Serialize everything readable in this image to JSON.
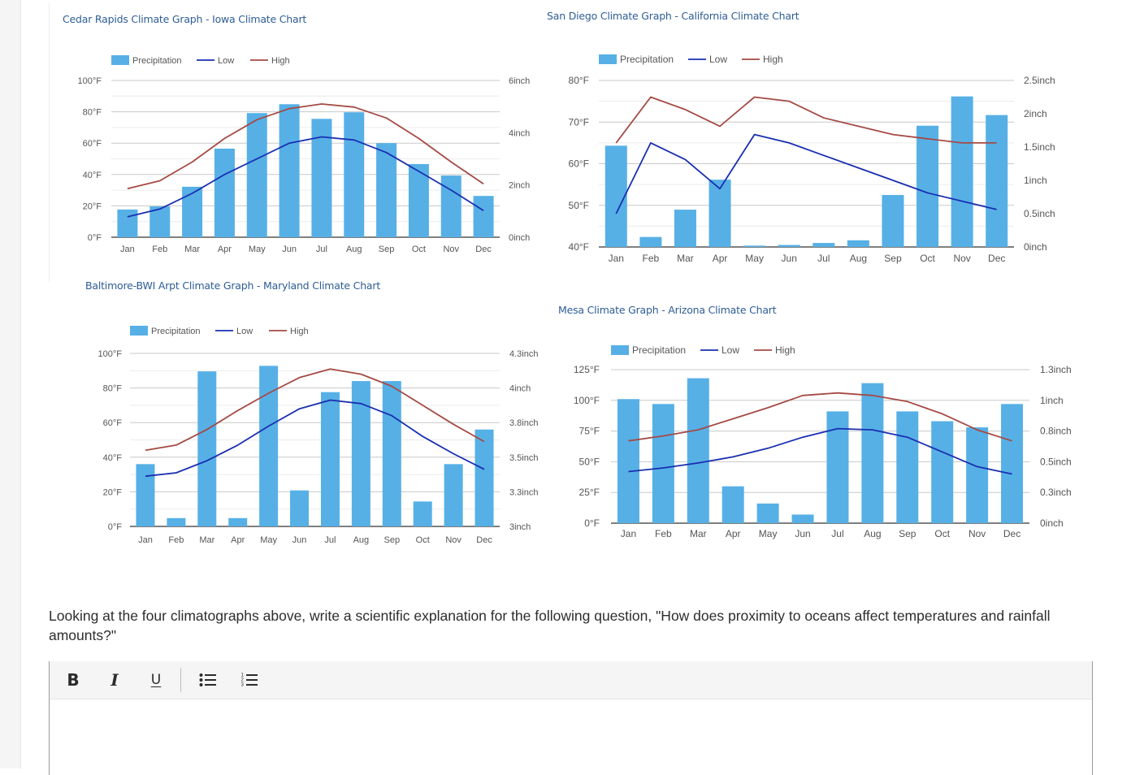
{
  "page": {
    "question": "Looking at the four climatographs above, write a scientific explanation for the following question, \"How does proximity to oceans affect temperatures and rainfall amounts?\""
  },
  "editor": {
    "toolbar": [
      {
        "name": "bold-button",
        "label": "B",
        "icon": "bold-icon"
      },
      {
        "name": "italic-button",
        "label": "I",
        "icon": "italic-icon"
      },
      {
        "name": "underline-button",
        "label": "U",
        "icon": "underline-icon"
      },
      {
        "name": "bullet-list-button",
        "label": "",
        "icon": "bullet-list-icon"
      },
      {
        "name": "numbered-list-button",
        "label": "",
        "icon": "numbered-list-icon"
      }
    ],
    "content": ""
  },
  "colors": {
    "precip": "#56b0e6",
    "low": "#1a2fb0",
    "high": "#a54a45",
    "title": "#2d5d95"
  },
  "chart_data": [
    {
      "id": "cedar",
      "type": "bar+line",
      "title": "Cedar Rapids Climate Graph - Iowa Climate Chart",
      "legend": [
        "Precipitation",
        "Low",
        "High"
      ],
      "legend_position": "top-left",
      "categories": [
        "Jan",
        "Feb",
        "Mar",
        "Apr",
        "May",
        "Jun",
        "Jul",
        "Aug",
        "Sep",
        "Oct",
        "Nov",
        "Dec"
      ],
      "y_left": {
        "range": [
          0,
          100
        ],
        "ticks": [
          "0°F",
          "20°F",
          "40°F",
          "60°F",
          "80°F",
          "100°F"
        ]
      },
      "y_right": {
        "range": [
          0,
          6
        ],
        "ticks": [
          "0inch",
          "2inch",
          "4inch",
          "6inch"
        ]
      },
      "grid": true,
      "series": [
        {
          "name": "Precipitation",
          "type": "bar",
          "axis": "right",
          "values": [
            1.06,
            1.18,
            1.93,
            3.39,
            4.75,
            5.09,
            4.53,
            4.78,
            3.6,
            2.8,
            2.36,
            1.58
          ]
        },
        {
          "name": "Low",
          "type": "line",
          "axis": "left",
          "values": [
            13,
            18,
            28,
            40,
            50,
            60,
            64,
            62,
            54,
            42,
            30,
            17
          ]
        },
        {
          "name": "High",
          "type": "line",
          "axis": "left",
          "values": [
            31,
            36,
            48,
            63,
            75,
            82,
            85,
            83,
            76,
            63,
            48,
            34
          ]
        }
      ]
    },
    {
      "id": "sandiego",
      "type": "bar+line",
      "title": "San Diego Climate Graph - California Climate Chart",
      "legend": [
        "Precipitation",
        "Low",
        "High"
      ],
      "legend_position": "top-left",
      "categories": [
        "Jan",
        "Feb",
        "Mar",
        "Apr",
        "May",
        "Jun",
        "Jul",
        "Aug",
        "Sep",
        "Oct",
        "Nov",
        "Dec"
      ],
      "y_left": {
        "range": [
          40,
          80
        ],
        "ticks": [
          "40°F",
          "50°F",
          "60°F",
          "70°F",
          "80°F"
        ]
      },
      "y_right": {
        "range": [
          0,
          2.5
        ],
        "ticks": [
          "0inch",
          "0.5inch",
          "1inch",
          "1.5inch",
          "2inch",
          "2.5inch"
        ]
      },
      "grid": true,
      "series": [
        {
          "name": "Precipitation",
          "type": "bar",
          "axis": "right",
          "values": [
            1.52,
            0.15,
            0.56,
            1.01,
            0.02,
            0.03,
            0.06,
            0.1,
            0.78,
            1.82,
            2.26,
            1.98
          ]
        },
        {
          "name": "Low",
          "type": "line",
          "axis": "left",
          "values": [
            48,
            65,
            61,
            54,
            67,
            65,
            62,
            59,
            56,
            53,
            51,
            49
          ]
        },
        {
          "name": "High",
          "type": "line",
          "axis": "left",
          "values": [
            65,
            76,
            73,
            69,
            76,
            75,
            71,
            69,
            67,
            66,
            65,
            65
          ]
        }
      ]
    },
    {
      "id": "baltimore",
      "type": "bar+line",
      "title": "Baltimore-BWI Arpt Climate Graph - Maryland Climate Chart",
      "legend": [
        "Precipitation",
        "Low",
        "High"
      ],
      "legend_position": "top-left",
      "categories": [
        "Jan",
        "Feb",
        "Mar",
        "Apr",
        "May",
        "Jun",
        "Jul",
        "Aug",
        "Sep",
        "Oct",
        "Nov",
        "Dec"
      ],
      "y_left": {
        "range": [
          0,
          100
        ],
        "ticks": [
          "0°F",
          "20°F",
          "40°F",
          "60°F",
          "80°F",
          "100°F"
        ]
      },
      "y_right": {
        "range": [
          3,
          4.25
        ],
        "ticks": [
          "3inch",
          "3.3inch",
          "3.5inch",
          "3.8inch",
          "4inch",
          "4.3inch"
        ]
      },
      "grid": true,
      "series": [
        {
          "name": "Precipitation",
          "type": "bar",
          "axis": "right",
          "values": [
            3.45,
            3.06,
            4.12,
            3.06,
            4.16,
            3.26,
            3.97,
            4.05,
            4.05,
            3.18,
            3.45,
            3.7
          ]
        },
        {
          "name": "Low",
          "type": "line",
          "axis": "left",
          "values": [
            29,
            31,
            38,
            47,
            58,
            68,
            73,
            71,
            64,
            52,
            42,
            33
          ]
        },
        {
          "name": "High",
          "type": "line",
          "axis": "left",
          "values": [
            44,
            47,
            56,
            67,
            77,
            86,
            91,
            88,
            81,
            70,
            59,
            49
          ]
        }
      ]
    },
    {
      "id": "mesa",
      "type": "bar+line",
      "title": "Mesa Climate Graph - Arizona Climate Chart",
      "legend": [
        "Precipitation",
        "Low",
        "High"
      ],
      "legend_position": "top-left",
      "categories": [
        "Jan",
        "Feb",
        "Mar",
        "Apr",
        "May",
        "Jun",
        "Jul",
        "Aug",
        "Sep",
        "Oct",
        "Nov",
        "Dec"
      ],
      "y_left": {
        "range": [
          0,
          125
        ],
        "ticks": [
          "0°F",
          "25°F",
          "50°F",
          "75°F",
          "100°F",
          "125°F"
        ]
      },
      "y_right": {
        "range": [
          0,
          1.25
        ],
        "ticks": [
          "0inch",
          "0.3inch",
          "0.5inch",
          "0.8inch",
          "1inch",
          "1.3inch"
        ]
      },
      "grid": true,
      "series": [
        {
          "name": "Precipitation",
          "type": "bar",
          "axis": "right",
          "values": [
            1.01,
            0.97,
            1.18,
            0.3,
            0.16,
            0.07,
            0.91,
            1.14,
            0.91,
            0.83,
            0.78,
            0.97
          ]
        },
        {
          "name": "Low",
          "type": "line",
          "axis": "left",
          "values": [
            42,
            45,
            49,
            54,
            61,
            70,
            77,
            76,
            70,
            58,
            46,
            40
          ]
        },
        {
          "name": "High",
          "type": "line",
          "axis": "left",
          "values": [
            67,
            71,
            76,
            85,
            94,
            104,
            106,
            104,
            99,
            89,
            76,
            67
          ]
        }
      ]
    }
  ]
}
